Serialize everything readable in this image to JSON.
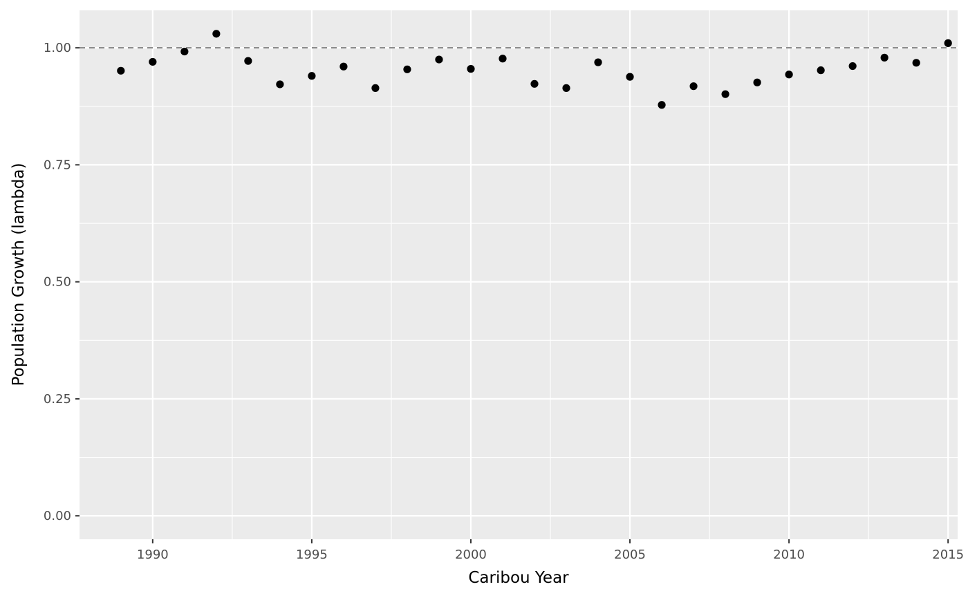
{
  "chart_data": {
    "type": "scatter",
    "title": "",
    "xlabel": "Caribou Year",
    "ylabel": "Population Growth (lambda)",
    "xlim": [
      1987.7,
      2015.3
    ],
    "ylim": [
      -0.05,
      1.08
    ],
    "x_ticks": [
      1990,
      1995,
      2000,
      2005,
      2010,
      2015
    ],
    "x_tick_labels": [
      "1990",
      "1995",
      "2000",
      "2005",
      "2010",
      "2015"
    ],
    "y_ticks": [
      0,
      0.25,
      0.5,
      0.75,
      1.0
    ],
    "y_tick_labels": [
      "0.00",
      "0.25",
      "0.50",
      "0.75",
      "1.00"
    ],
    "reference_line": {
      "y": 1.0,
      "style": "dashed",
      "color": "#808080"
    },
    "grid": true,
    "colors": {
      "panel": "#ebebeb",
      "grid": "#ffffff",
      "point": "#000000"
    },
    "series": [
      {
        "x": [
          1989,
          1990,
          1991,
          1992,
          1993,
          1994,
          1995,
          1996,
          1997,
          1998,
          1999,
          2000,
          2001,
          2002,
          2003,
          2004,
          2005,
          2006,
          2007,
          2008,
          2009,
          2010,
          2011,
          2012,
          2013,
          2014,
          2015
        ],
        "y": [
          0.951,
          0.97,
          0.992,
          1.03,
          0.972,
          0.922,
          0.94,
          0.96,
          0.914,
          0.954,
          0.975,
          0.955,
          0.977,
          0.923,
          0.914,
          0.969,
          0.938,
          0.878,
          0.918,
          0.901,
          0.926,
          0.943,
          0.952,
          0.961,
          0.979,
          0.968,
          1.01
        ]
      }
    ]
  }
}
